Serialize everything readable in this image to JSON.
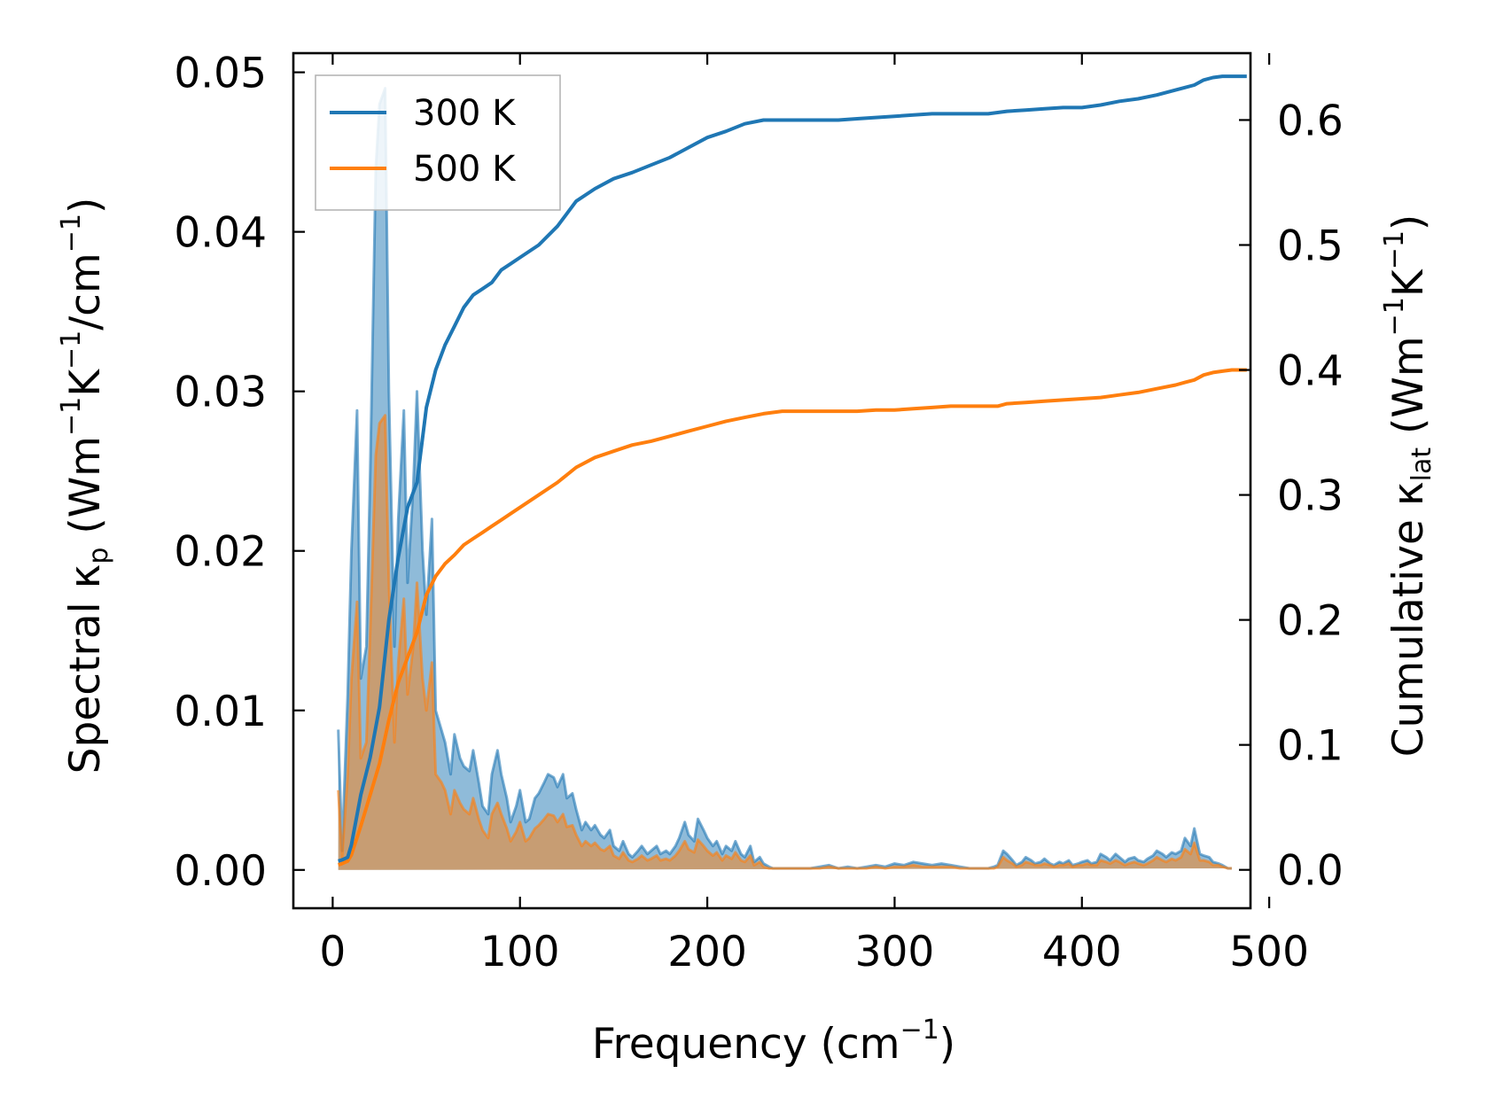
{
  "chart_data": {
    "type": "line",
    "colors": {
      "series_300": "#1f77b4",
      "series_500": "#ff7f0e"
    },
    "xlabel": {
      "main": "Frequency (cm",
      "sup": "−1",
      "end": ")"
    },
    "ylabel_left": {
      "p1": "Spectral κ",
      "sub": "p",
      "p2": " (Wm",
      "sup1": "−1",
      "p3": "K",
      "sup2": "−1",
      "p4": "/cm",
      "sup3": "−1",
      "p5": ")"
    },
    "ylabel_right": {
      "p1": "Cumulative κ",
      "sub": "lat",
      "p2": " (Wm",
      "sup1": "−1",
      "p3": "K",
      "sup2": "−1",
      "p4": ")"
    },
    "xlim": [
      -21,
      490
    ],
    "ylim_left": [
      -0.0024,
      0.0512
    ],
    "ylim_right": [
      -0.0307,
      0.6535
    ],
    "xticks": [
      0,
      100,
      200,
      300,
      400,
      500
    ],
    "xtick_labels": [
      "0",
      "100",
      "200",
      "300",
      "400",
      "500"
    ],
    "yticks_left": [
      0,
      0.01,
      0.02,
      0.03,
      0.04,
      0.05
    ],
    "ytick_labels_left": [
      "0.00",
      "0.01",
      "0.02",
      "0.03",
      "0.04",
      "0.05"
    ],
    "yticks_right": [
      0,
      0.1,
      0.2,
      0.3,
      0.4,
      0.5,
      0.6
    ],
    "ytick_labels_right": [
      "0.0",
      "0.1",
      "0.2",
      "0.3",
      "0.4",
      "0.5",
      "0.6"
    ],
    "legend": {
      "position": "top-left",
      "entries": [
        "300 K",
        "500 K"
      ]
    },
    "spectral": {
      "x": [
        3,
        5,
        8,
        10,
        13,
        15,
        18,
        20,
        23,
        25,
        28,
        30,
        33,
        35,
        38,
        40,
        43,
        45,
        48,
        50,
        53,
        55,
        58,
        60,
        63,
        65,
        68,
        70,
        73,
        75,
        78,
        80,
        83,
        85,
        88,
        90,
        93,
        95,
        98,
        100,
        103,
        105,
        108,
        110,
        113,
        115,
        118,
        120,
        123,
        125,
        128,
        130,
        133,
        135,
        138,
        140,
        143,
        145,
        148,
        150,
        153,
        155,
        158,
        160,
        163,
        165,
        168,
        170,
        173,
        175,
        178,
        180,
        183,
        185,
        188,
        190,
        193,
        195,
        198,
        200,
        203,
        205,
        208,
        210,
        213,
        215,
        218,
        220,
        223,
        225,
        228,
        230,
        233,
        235,
        238,
        240,
        243,
        245,
        248,
        250,
        255,
        260,
        265,
        270,
        275,
        280,
        285,
        290,
        295,
        300,
        305,
        310,
        315,
        320,
        325,
        330,
        335,
        340,
        345,
        350,
        353,
        355,
        358,
        360,
        363,
        365,
        368,
        370,
        373,
        375,
        378,
        380,
        383,
        385,
        388,
        390,
        393,
        395,
        398,
        400,
        403,
        405,
        408,
        410,
        413,
        415,
        418,
        420,
        423,
        425,
        428,
        430,
        433,
        435,
        438,
        440,
        443,
        445,
        448,
        450,
        453,
        455,
        458,
        460,
        463,
        465,
        468,
        470,
        473,
        475,
        478,
        480,
        483,
        485,
        488
      ],
      "s300": [
        0.0088,
        0.0012,
        0.011,
        0.02,
        0.0288,
        0.012,
        0.014,
        0.025,
        0.044,
        0.048,
        0.049,
        0.03,
        0.014,
        0.022,
        0.0288,
        0.018,
        0.024,
        0.03,
        0.02,
        0.016,
        0.022,
        0.01,
        0.0088,
        0.008,
        0.006,
        0.0085,
        0.007,
        0.0065,
        0.0062,
        0.0075,
        0.0055,
        0.004,
        0.0035,
        0.006,
        0.0075,
        0.006,
        0.0045,
        0.003,
        0.004,
        0.005,
        0.003,
        0.0032,
        0.0045,
        0.0048,
        0.0055,
        0.006,
        0.0058,
        0.0052,
        0.006,
        0.0045,
        0.0048,
        0.0038,
        0.0025,
        0.003,
        0.0025,
        0.0028,
        0.0022,
        0.002,
        0.0025,
        0.0015,
        0.0012,
        0.0018,
        0.001,
        0.0008,
        0.0012,
        0.0015,
        0.001,
        0.0012,
        0.0015,
        0.001,
        0.0012,
        0.001,
        0.0015,
        0.002,
        0.003,
        0.0022,
        0.0018,
        0.0032,
        0.0025,
        0.002,
        0.0015,
        0.0018,
        0.001,
        0.0015,
        0.0012,
        0.0018,
        0.001,
        0.0008,
        0.0015,
        0.0005,
        0.0008,
        0.0004,
        0.0002,
        0.0001,
        0.0001,
        0.0001,
        0.0001,
        0.0001,
        0.0001,
        0.0001,
        0.0001,
        0.0002,
        0.0003,
        0.0001,
        0.0002,
        0.0001,
        0.0002,
        0.0003,
        0.0002,
        0.0004,
        0.0003,
        0.0005,
        0.0004,
        0.0003,
        0.0004,
        0.0003,
        0.0002,
        0.0001,
        0.0001,
        0.0001,
        0.0002,
        0.0003,
        0.0012,
        0.001,
        0.0006,
        0.0003,
        0.0005,
        0.0008,
        0.0006,
        0.0004,
        0.0005,
        0.0007,
        0.0004,
        0.0003,
        0.0005,
        0.0004,
        0.0006,
        0.0003,
        0.0004,
        0.0005,
        0.0006,
        0.0004,
        0.0005,
        0.001,
        0.0008,
        0.0006,
        0.001,
        0.0008,
        0.0005,
        0.0007,
        0.0008,
        0.0006,
        0.0005,
        0.0007,
        0.0009,
        0.0012,
        0.001,
        0.0008,
        0.0011,
        0.001,
        0.0012,
        0.002,
        0.0015,
        0.0026,
        0.001,
        0.0009,
        0.0008,
        0.0005,
        0.0004,
        0.0003,
        0.0001,
        0.0001
      ],
      "s500": [
        0.005,
        0.0008,
        0.006,
        0.012,
        0.0168,
        0.007,
        0.008,
        0.015,
        0.026,
        0.028,
        0.0285,
        0.018,
        0.008,
        0.013,
        0.017,
        0.011,
        0.014,
        0.018,
        0.012,
        0.01,
        0.013,
        0.006,
        0.0055,
        0.005,
        0.0035,
        0.005,
        0.0042,
        0.0038,
        0.0035,
        0.0045,
        0.0032,
        0.0025,
        0.002,
        0.0035,
        0.0042,
        0.0035,
        0.0026,
        0.0018,
        0.0024,
        0.003,
        0.0018,
        0.002,
        0.0026,
        0.0028,
        0.0032,
        0.0035,
        0.0034,
        0.003,
        0.0035,
        0.0027,
        0.0028,
        0.0022,
        0.0015,
        0.0018,
        0.0015,
        0.0017,
        0.0013,
        0.0012,
        0.0015,
        0.0009,
        0.0007,
        0.0011,
        0.0006,
        0.0005,
        0.0007,
        0.0009,
        0.0006,
        0.0007,
        0.0009,
        0.0006,
        0.0007,
        0.0006,
        0.0009,
        0.0012,
        0.0018,
        0.0013,
        0.0011,
        0.0019,
        0.0015,
        0.0012,
        0.0009,
        0.0011,
        0.0006,
        0.0009,
        0.0007,
        0.0011,
        0.0006,
        0.0005,
        0.0009,
        0.0003,
        0.0005,
        0.0002,
        0.0001,
        0.0001,
        0.0001,
        0.0001,
        0.0001,
        0.0001,
        0.0001,
        0.0001,
        0.0001,
        0.0001,
        0.0002,
        0.0001,
        0.0001,
        0.0001,
        0.0001,
        0.0002,
        0.0001,
        0.0002,
        0.0002,
        0.0003,
        0.0002,
        0.0002,
        0.0002,
        0.0002,
        0.0001,
        0.0001,
        0.0001,
        0.0001,
        0.0001,
        0.0002,
        0.0008,
        0.0006,
        0.0004,
        0.0002,
        0.0003,
        0.0005,
        0.0004,
        0.0003,
        0.0003,
        0.0004,
        0.0003,
        0.0002,
        0.0003,
        0.0003,
        0.0004,
        0.0002,
        0.0003,
        0.0003,
        0.0004,
        0.0003,
        0.0003,
        0.0006,
        0.0005,
        0.0004,
        0.0006,
        0.0005,
        0.0003,
        0.0004,
        0.0005,
        0.0004,
        0.0003,
        0.0004,
        0.0006,
        0.0008,
        0.0006,
        0.0005,
        0.0007,
        0.0006,
        0.0008,
        0.0013,
        0.001,
        0.0017,
        0.0006,
        0.0006,
        0.0005,
        0.0003,
        0.0003,
        0.0002,
        0.0001,
        0.0001
      ]
    },
    "cumulative": {
      "x": [
        3,
        5,
        8,
        10,
        15,
        20,
        25,
        30,
        35,
        40,
        45,
        50,
        55,
        60,
        65,
        70,
        75,
        80,
        85,
        90,
        95,
        100,
        110,
        120,
        130,
        140,
        150,
        160,
        170,
        180,
        190,
        200,
        210,
        220,
        230,
        240,
        250,
        260,
        270,
        280,
        290,
        300,
        310,
        320,
        330,
        340,
        350,
        355,
        360,
        370,
        380,
        390,
        400,
        410,
        420,
        430,
        440,
        450,
        455,
        460,
        465,
        470,
        475,
        480,
        488
      ],
      "c300": [
        0.007,
        0.008,
        0.01,
        0.02,
        0.06,
        0.09,
        0.13,
        0.2,
        0.25,
        0.29,
        0.31,
        0.37,
        0.4,
        0.42,
        0.435,
        0.45,
        0.46,
        0.465,
        0.47,
        0.48,
        0.485,
        0.49,
        0.5,
        0.515,
        0.535,
        0.545,
        0.553,
        0.558,
        0.564,
        0.57,
        0.578,
        0.586,
        0.591,
        0.597,
        0.6,
        0.6,
        0.6,
        0.6,
        0.6,
        0.601,
        0.602,
        0.603,
        0.604,
        0.605,
        0.605,
        0.605,
        0.605,
        0.606,
        0.607,
        0.608,
        0.609,
        0.61,
        0.61,
        0.612,
        0.615,
        0.617,
        0.62,
        0.624,
        0.626,
        0.628,
        0.632,
        0.634,
        0.635,
        0.635,
        0.635
      ],
      "c500": [
        0.004,
        0.005,
        0.007,
        0.012,
        0.035,
        0.06,
        0.085,
        0.12,
        0.15,
        0.17,
        0.19,
        0.22,
        0.235,
        0.245,
        0.252,
        0.26,
        0.265,
        0.27,
        0.275,
        0.28,
        0.285,
        0.29,
        0.3,
        0.31,
        0.322,
        0.33,
        0.335,
        0.34,
        0.343,
        0.347,
        0.351,
        0.355,
        0.359,
        0.362,
        0.365,
        0.367,
        0.367,
        0.367,
        0.367,
        0.367,
        0.368,
        0.368,
        0.369,
        0.37,
        0.371,
        0.371,
        0.371,
        0.371,
        0.373,
        0.374,
        0.375,
        0.376,
        0.377,
        0.378,
        0.38,
        0.382,
        0.385,
        0.388,
        0.39,
        0.392,
        0.396,
        0.398,
        0.399,
        0.4,
        0.4
      ]
    }
  }
}
